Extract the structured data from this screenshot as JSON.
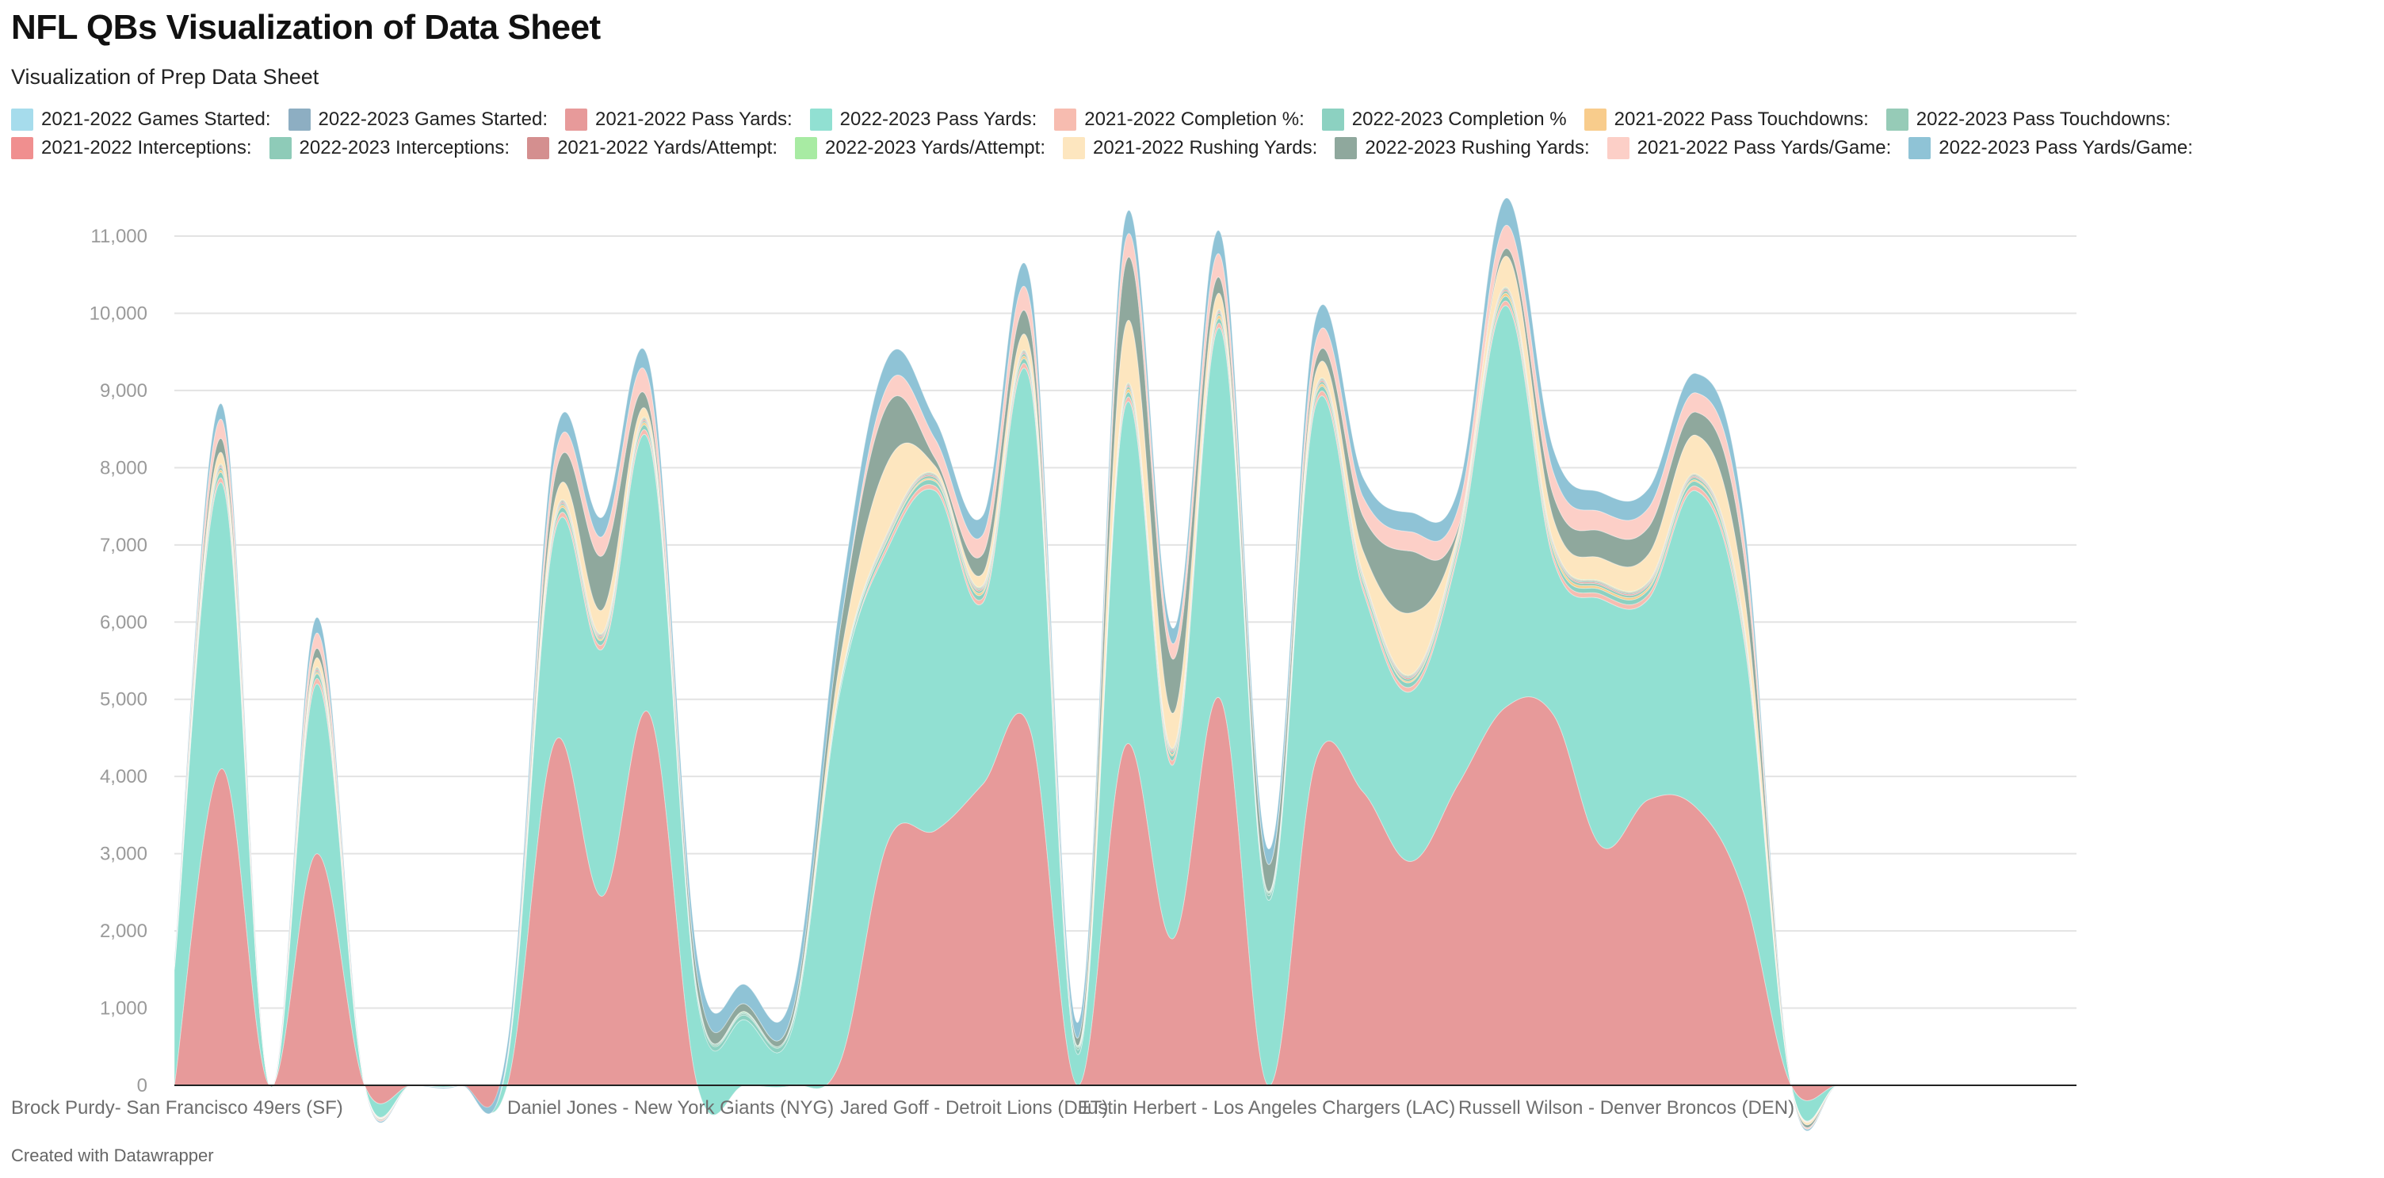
{
  "title": "NFL QBs Visualization of Data Sheet",
  "subtitle": "Visualization of Prep Data Sheet",
  "footer": "Created with Datawrapper",
  "chart_data": {
    "type": "area",
    "stacked": true,
    "grid": true,
    "legend_position": "top",
    "ylim": [
      0,
      11000
    ],
    "y_ticks": [
      "0",
      "1,000",
      "2,000",
      "3,000",
      "4,000",
      "5,000",
      "6,000",
      "7,000",
      "8,000",
      "9,000",
      "10,000",
      "11,000"
    ],
    "x_ticks": [
      {
        "label": "Brock Purdy- San Francisco 49ers (SF)",
        "x": 0
      },
      {
        "label": "Daniel Jones - New York Giants (NYG)",
        "x": 8
      },
      {
        "label": "Jared Goff - Detroit Lions (DET)",
        "x": 15
      },
      {
        "label": "Justin Herbert - Los Angeles Chargers (LAC)",
        "x": 20
      },
      {
        "label": "Russell Wilson - Denver Broncos (DEN)",
        "x": 28
      }
    ],
    "x": [
      0,
      1,
      2,
      3,
      4,
      5,
      6,
      7,
      8,
      9,
      10,
      11,
      12,
      13,
      14,
      15,
      16,
      17,
      18,
      19,
      20,
      21,
      22,
      23,
      24,
      25,
      26,
      27,
      28,
      29,
      30,
      31,
      32,
      33,
      34,
      35,
      36,
      37,
      38,
      39,
      40
    ],
    "series": [
      {
        "name": "2021-2022 Pass Yards:",
        "color": "#e79a9a",
        "values": [
          0,
          4100,
          0,
          3000,
          0,
          0,
          0,
          0,
          4450,
          2450,
          4800,
          0,
          0,
          0,
          300,
          3150,
          3300,
          3900,
          4600,
          0,
          4400,
          1900,
          5000,
          0,
          4200,
          3800,
          2900,
          3900,
          4900,
          4800,
          3100,
          3700,
          3600,
          2500,
          0,
          0,
          0,
          0,
          0,
          0,
          0
        ]
      },
      {
        "name": "2022-2023 Pass Yards:",
        "color": "#91e0d2",
        "values": [
          1500,
          3700,
          0,
          2200,
          0,
          0,
          0,
          300,
          2700,
          3200,
          3500,
          1100,
          850,
          750,
          4800,
          3800,
          4400,
          2350,
          4500,
          400,
          4400,
          2250,
          4800,
          2400,
          4600,
          2600,
          2200,
          3000,
          5200,
          2000,
          3200,
          2600,
          4100,
          3300,
          0,
          0,
          0,
          0,
          0,
          0,
          0
        ]
      },
      {
        "name": "2021-2022 Completion %:",
        "color": "#f7bcb0",
        "values": [
          0,
          60,
          0,
          70,
          0,
          0,
          0,
          0,
          60,
          60,
          60,
          0,
          0,
          0,
          0,
          60,
          60,
          60,
          60,
          0,
          60,
          60,
          60,
          0,
          60,
          60,
          60,
          60,
          60,
          60,
          60,
          60,
          60,
          60,
          0,
          0,
          0,
          0,
          0,
          0,
          0
        ]
      },
      {
        "name": "2022-2023 Completion %",
        "color": "#8cd1c1",
        "values": [
          30,
          70,
          0,
          60,
          0,
          0,
          0,
          30,
          60,
          60,
          60,
          60,
          60,
          60,
          60,
          60,
          60,
          60,
          60,
          60,
          60,
          60,
          60,
          60,
          60,
          60,
          60,
          60,
          60,
          60,
          60,
          60,
          60,
          60,
          0,
          0,
          0,
          0,
          0,
          0,
          0
        ]
      },
      {
        "name": "2021-2022 Pass Touchdowns:",
        "color": "#f8cc8c",
        "values": [
          0,
          30,
          0,
          20,
          0,
          0,
          0,
          0,
          30,
          20,
          30,
          0,
          0,
          0,
          0,
          20,
          20,
          30,
          30,
          0,
          40,
          20,
          40,
          0,
          30,
          20,
          20,
          30,
          40,
          40,
          30,
          30,
          20,
          30,
          0,
          0,
          0,
          0,
          0,
          0,
          0
        ]
      },
      {
        "name": "2022-2023 Pass Touchdowns:",
        "color": "#96cbb7",
        "values": [
          10,
          30,
          0,
          20,
          0,
          0,
          0,
          10,
          20,
          20,
          20,
          20,
          20,
          20,
          30,
          30,
          30,
          30,
          30,
          30,
          30,
          30,
          30,
          30,
          30,
          30,
          30,
          30,
          30,
          30,
          30,
          30,
          30,
          30,
          0,
          0,
          0,
          0,
          0,
          0,
          0
        ]
      },
      {
        "name": "2021-2022 Interceptions:",
        "color": "#f08f8f",
        "values": [
          0,
          15,
          0,
          15,
          0,
          0,
          0,
          0,
          15,
          15,
          15,
          0,
          0,
          0,
          0,
          15,
          15,
          15,
          15,
          0,
          15,
          15,
          15,
          0,
          15,
          15,
          15,
          15,
          15,
          15,
          15,
          15,
          15,
          15,
          0,
          0,
          0,
          0,
          0,
          0,
          0
        ]
      },
      {
        "name": "2022-2023 Interceptions:",
        "color": "#8ecbb8",
        "values": [
          10,
          15,
          0,
          15,
          0,
          0,
          0,
          10,
          15,
          15,
          15,
          15,
          15,
          15,
          15,
          15,
          15,
          15,
          15,
          15,
          15,
          15,
          15,
          15,
          15,
          15,
          15,
          15,
          15,
          15,
          15,
          15,
          15,
          15,
          0,
          0,
          0,
          0,
          0,
          0,
          0
        ]
      },
      {
        "name": "2021-2022 Yards/Attempt:",
        "color": "#d48f8f",
        "values": [
          0,
          10,
          0,
          10,
          0,
          0,
          0,
          0,
          10,
          10,
          10,
          0,
          0,
          0,
          0,
          10,
          10,
          10,
          10,
          0,
          10,
          10,
          10,
          0,
          10,
          10,
          10,
          10,
          10,
          10,
          10,
          10,
          10,
          10,
          0,
          0,
          0,
          0,
          0,
          0,
          0
        ]
      },
      {
        "name": "2022-2023 Yards/Attempt:",
        "color": "#a8eba3",
        "values": [
          5,
          10,
          0,
          10,
          0,
          0,
          0,
          5,
          10,
          10,
          10,
          10,
          10,
          10,
          10,
          10,
          10,
          10,
          10,
          10,
          10,
          10,
          10,
          10,
          10,
          10,
          10,
          10,
          10,
          10,
          10,
          10,
          10,
          10,
          0,
          0,
          0,
          0,
          0,
          0,
          0
        ]
      },
      {
        "name": "2021-2022 Rushing Yards:",
        "color": "#fde6bf",
        "values": [
          0,
          150,
          0,
          120,
          0,
          0,
          0,
          0,
          200,
          300,
          100,
          0,
          0,
          0,
          300,
          900,
          100,
          150,
          200,
          0,
          800,
          450,
          200,
          0,
          200,
          300,
          800,
          50,
          400,
          300,
          300,
          350,
          500,
          400,
          0,
          0,
          0,
          0,
          0,
          0,
          0
        ]
      },
      {
        "name": "2022-2023 Rushing Yards:",
        "color": "#8fa89d",
        "values": [
          30,
          180,
          0,
          120,
          0,
          0,
          0,
          20,
          300,
          700,
          150,
          200,
          100,
          100,
          400,
          750,
          100,
          250,
          300,
          100,
          800,
          700,
          200,
          350,
          150,
          450,
          800,
          50,
          100,
          300,
          350,
          350,
          300,
          450,
          0,
          0,
          0,
          0,
          0,
          0,
          0
        ]
      },
      {
        "name": "2021-2022 Pass Yards/Game:",
        "color": "#fccfc7",
        "values": [
          0,
          250,
          0,
          200,
          0,
          0,
          0,
          0,
          250,
          250,
          300,
          0,
          0,
          0,
          0,
          250,
          250,
          250,
          300,
          0,
          300,
          200,
          300,
          0,
          250,
          250,
          250,
          250,
          300,
          300,
          250,
          250,
          250,
          250,
          0,
          0,
          0,
          0,
          0,
          0,
          0
        ]
      },
      {
        "name": "2022-2023 Pass Yards/Game:",
        "color": "#8fc3d6",
        "values": [
          30,
          200,
          0,
          200,
          0,
          0,
          0,
          150,
          250,
          250,
          250,
          250,
          250,
          250,
          350,
          350,
          250,
          250,
          300,
          200,
          300,
          200,
          300,
          200,
          300,
          250,
          250,
          250,
          350,
          300,
          250,
          250,
          250,
          250,
          0,
          0,
          0,
          0,
          0,
          0,
          0
        ]
      }
    ],
    "legend_entries": [
      {
        "label": "2021-2022 Games Started:",
        "color": "#a6dcec"
      },
      {
        "label": "2022-2023 Games Started:",
        "color": "#8daec2"
      },
      {
        "label": "2021-2022 Pass Yards:",
        "color": "#e79a9a"
      },
      {
        "label": "2022-2023 Pass Yards:",
        "color": "#91e0d2"
      },
      {
        "label": "2021-2022 Completion %:",
        "color": "#f7bcb0"
      },
      {
        "label": "2022-2023 Completion %",
        "color": "#8cd1c1"
      },
      {
        "label": "2021-2022 Pass Touchdowns:",
        "color": "#f8cc8c"
      },
      {
        "label": "2022-2023 Pass Touchdowns:",
        "color": "#96cbb7"
      },
      {
        "label": "2021-2022 Interceptions:",
        "color": "#f08f8f"
      },
      {
        "label": "2022-2023 Interceptions:",
        "color": "#8ecbb8"
      },
      {
        "label": "2021-2022 Yards/Attempt:",
        "color": "#d48f8f"
      },
      {
        "label": "2022-2023 Yards/Attempt:",
        "color": "#a8eba3"
      },
      {
        "label": "2021-2022 Rushing Yards:",
        "color": "#fde6bf"
      },
      {
        "label": "2022-2023 Rushing Yards:",
        "color": "#8fa89d"
      },
      {
        "label": "2021-2022 Pass Yards/Game:",
        "color": "#fccfc7"
      },
      {
        "label": "2022-2023 Pass Yards/Game:",
        "color": "#8fc3d6"
      }
    ]
  }
}
